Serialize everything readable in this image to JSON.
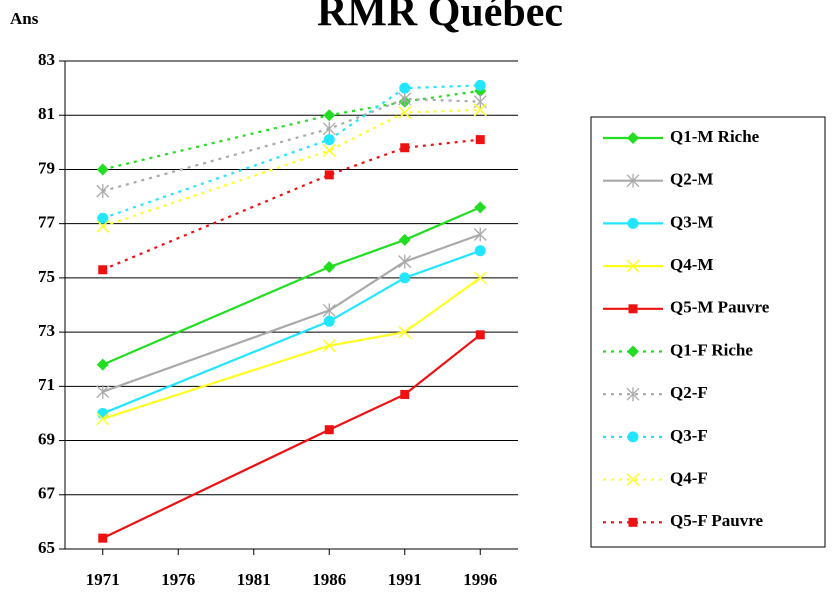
{
  "chart_data": {
    "type": "line",
    "title": "RMR Québec",
    "y_label": "Ans",
    "x": [
      1971,
      1986,
      1991,
      1996
    ],
    "xlim": [
      1968.5,
      1998.5
    ],
    "xticks": [
      1971,
      1976,
      1981,
      1986,
      1991,
      1996
    ],
    "ylim": [
      65,
      83
    ],
    "yticks": [
      65,
      67,
      69,
      71,
      73,
      75,
      77,
      79,
      81,
      83
    ],
    "grid": true,
    "legend": "right",
    "series": [
      {
        "name": "Q1-M Riche",
        "color": "#22dd22",
        "marker": "diamond",
        "dashed": false,
        "values": [
          71.8,
          75.4,
          76.4,
          77.6
        ]
      },
      {
        "name": "Q2-M",
        "color": "#aaaaaa",
        "marker": "star",
        "dashed": false,
        "values": [
          70.8,
          73.8,
          75.6,
          76.6
        ]
      },
      {
        "name": "Q3-M",
        "color": "#22e5ff",
        "marker": "circle",
        "dashed": false,
        "values": [
          70.0,
          73.4,
          75.0,
          76.0
        ]
      },
      {
        "name": "Q4-M",
        "color": "#ffff22",
        "marker": "x",
        "dashed": false,
        "values": [
          69.8,
          72.5,
          73.0,
          75.0
        ]
      },
      {
        "name": "Q5-M Pauvre",
        "color": "#ee1111",
        "marker": "square",
        "dashed": false,
        "values": [
          65.4,
          69.4,
          70.7,
          72.9
        ]
      },
      {
        "name": "Q1-F Riche",
        "color": "#22dd22",
        "marker": "diamond",
        "dashed": true,
        "values": [
          79.0,
          81.0,
          81.5,
          81.9
        ]
      },
      {
        "name": "Q2-F",
        "color": "#aaaaaa",
        "marker": "star",
        "dashed": true,
        "values": [
          78.2,
          80.5,
          81.6,
          81.5
        ]
      },
      {
        "name": "Q3-F",
        "color": "#22e5ff",
        "marker": "circle",
        "dashed": true,
        "values": [
          77.2,
          80.1,
          82.0,
          82.1
        ]
      },
      {
        "name": "Q4-F",
        "color": "#ffff22",
        "marker": "x",
        "dashed": true,
        "values": [
          76.9,
          79.7,
          81.1,
          81.2
        ]
      },
      {
        "name": "Q5-F Pauvre",
        "color": "#ee1111",
        "marker": "square",
        "dashed": true,
        "values": [
          75.3,
          78.8,
          79.8,
          80.1
        ]
      }
    ]
  }
}
